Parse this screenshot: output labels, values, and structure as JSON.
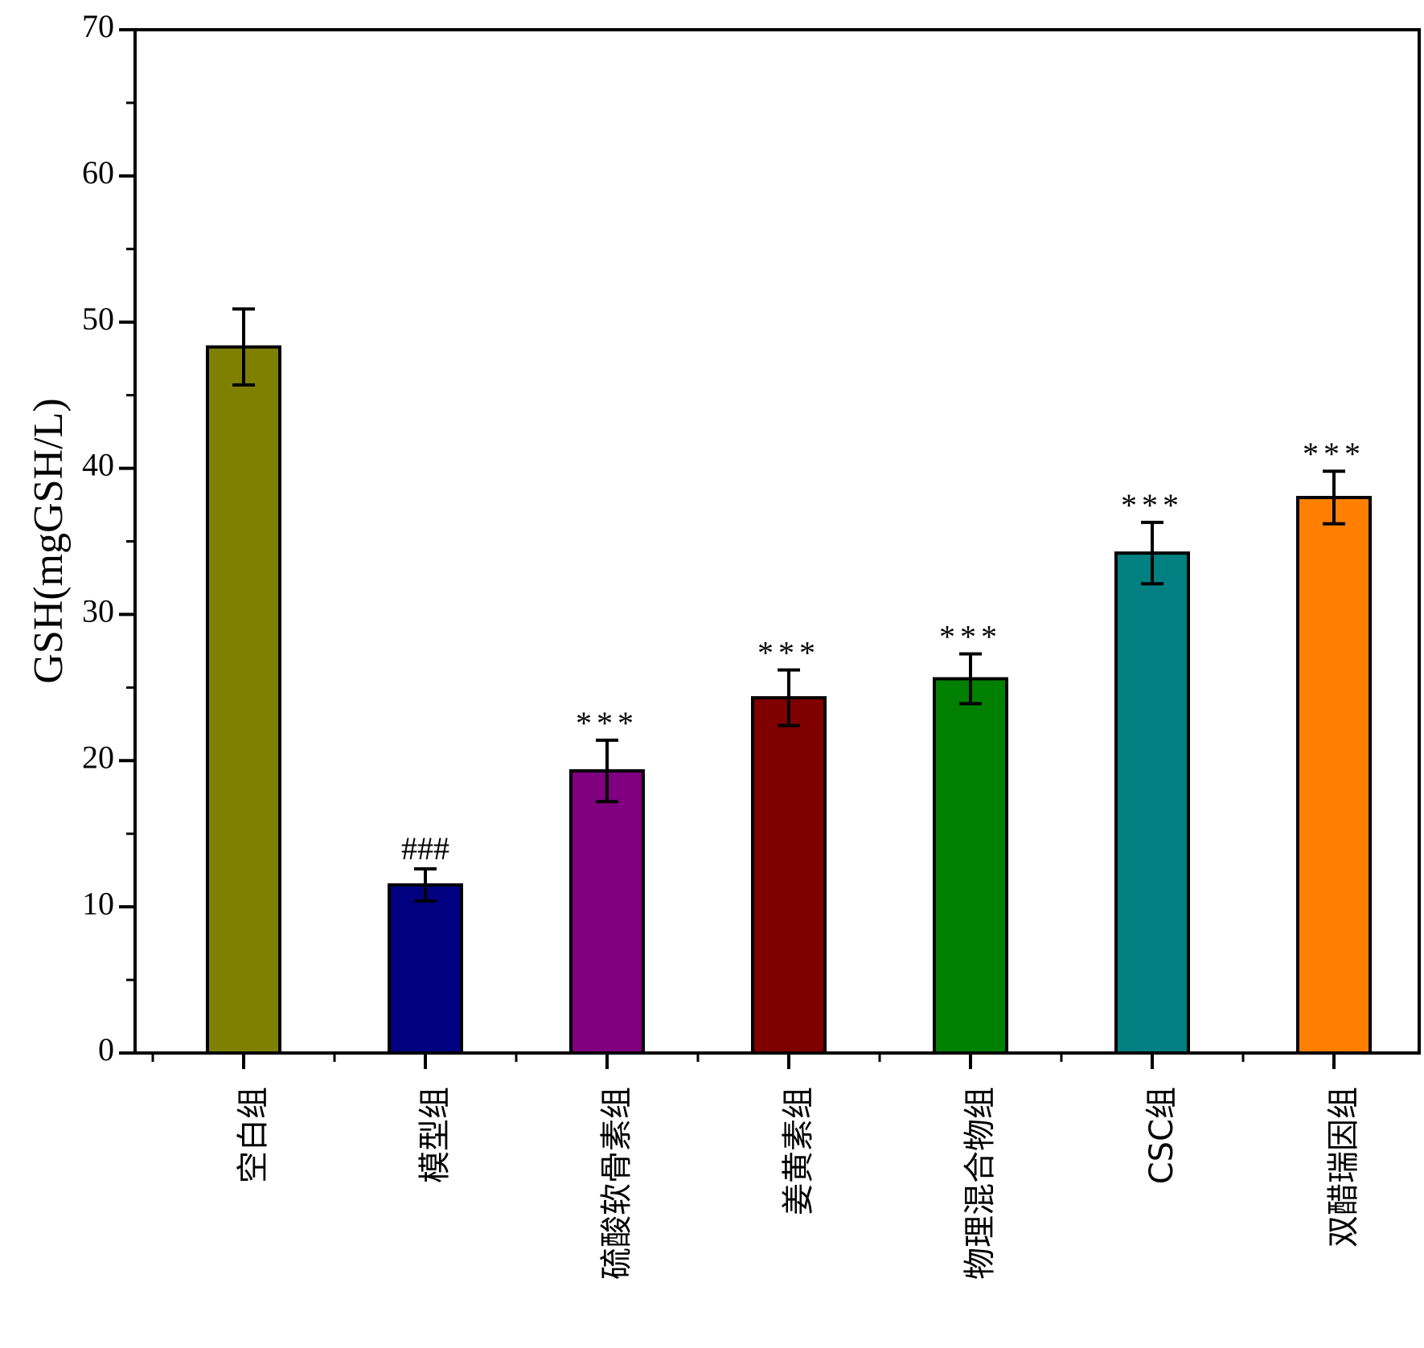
{
  "chart_data": {
    "type": "bar",
    "title": "",
    "xlabel": "",
    "ylabel": "GSH(mgGSH/L)",
    "ylim": [
      0,
      70
    ],
    "yticks": [
      0,
      10,
      20,
      30,
      40,
      50,
      60,
      70
    ],
    "grid": false,
    "legend": "none",
    "categories": [
      "空白组",
      "模型组",
      "硫酸软骨素组",
      "姜黄素组",
      "物理混合物组",
      "CSC组",
      "双醋瑞因组"
    ],
    "values": [
      48.3,
      11.5,
      19.3,
      24.3,
      25.6,
      34.2,
      38.0
    ],
    "errors": [
      2.6,
      1.1,
      2.1,
      1.9,
      1.7,
      2.1,
      1.8
    ],
    "annotations": [
      "",
      "###",
      "***",
      "***",
      "***",
      "***",
      "***"
    ],
    "colors": [
      "#808000",
      "#000080",
      "#800080",
      "#800000",
      "#008000",
      "#008080",
      "#ff8000"
    ]
  }
}
